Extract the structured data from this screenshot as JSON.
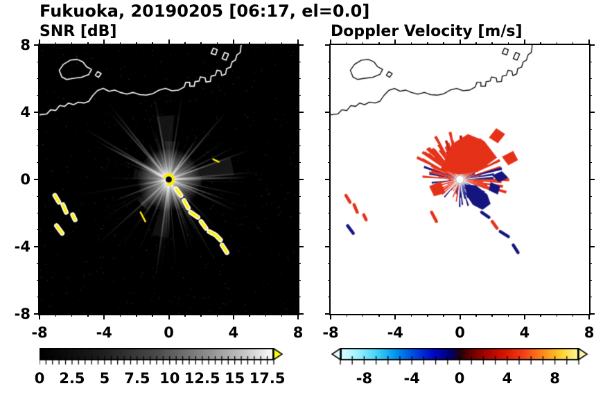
{
  "header": {
    "title": "Fukuoka, 20190205 [06:17, el=0.0]"
  },
  "chart_data": [
    {
      "type": "heatmap",
      "title": "SNR [dB]",
      "xlim": [
        -8,
        8
      ],
      "ylim": [
        -8,
        8
      ],
      "x_tick_values": [
        -8,
        -4,
        0,
        4,
        8
      ],
      "x_tick_labels": [
        "-8",
        "-4",
        "0",
        "4",
        "8"
      ],
      "y_tick_values": [
        8,
        4,
        0,
        -4,
        -8
      ],
      "y_tick_labels": [
        "8",
        "4",
        "0",
        "-4",
        "-8"
      ],
      "background": "#000000",
      "grid": false,
      "colorbar": {
        "orientation": "horizontal",
        "vmin": 0,
        "vmax": 18,
        "tick_values": [
          0,
          2.5,
          5,
          7.5,
          10,
          12.5,
          15,
          17.5
        ],
        "tick_labels": [
          "0",
          "2.5",
          "5",
          "7.5",
          "10",
          "12.5",
          "15",
          "17.5"
        ],
        "colormap": "grayscale black to white",
        "over_arrow_color": "#ffff00"
      },
      "features": [
        "Radar at origin (0,0) with bright white glow and thin radial SNR spokes (5-15 dB) extending up to ~6 units in all directions",
        "Saturated (>17.5 dB) yellow ring immediately around the radar with black dot at exact center",
        "Chain of saturated yellow ground-clutter arcs with white halos running southeast from (0.5,-0.6) to (3.6,-4.3)",
        "Cluster of saturated yellow clutter arcs at lower left between (-7,-1) and (-6.3,-3.3)",
        "Thin yellow clutter dash near (-1.6,-2.2) and small dash near (2.9,1.1)",
        "White coastline of Hakata Bay across the northern half with island outline near (-5.7,6.5) and angular port structures to the northeast",
        "Faint speckle noise over the black background"
      ]
    },
    {
      "type": "heatmap",
      "title": "Doppler Velocity [m/s]",
      "xlim": [
        -8,
        8
      ],
      "ylim": [
        -8,
        8
      ],
      "x_tick_values": [
        -8,
        -4,
        0,
        4,
        8
      ],
      "x_tick_labels": [
        "-8",
        "-4",
        "0",
        "4",
        "8"
      ],
      "y_tick_values": [
        8,
        4,
        0,
        -4,
        -8
      ],
      "y_tick_labels": [],
      "background": "#ffffff",
      "grid": false,
      "colorbar": {
        "orientation": "horizontal",
        "vmin": -10,
        "vmax": 10,
        "tick_values": [
          -8,
          -4,
          0,
          4,
          8
        ],
        "tick_labels": [
          "-8",
          "-4",
          "0",
          "4",
          "8"
        ],
        "colormap": "cyan to blue to navy to black to dark red to red to orange to yellow",
        "under_arrow_color": "#dffdff",
        "over_arrow_color": "#fff9a0"
      },
      "features": [
        "Jagged fan of positive Doppler velocities (red, roughly +3 to +6 m/s) north through east of the radar extending to ~3 units",
        "Solid negative-velocity patch (navy, roughly -6 m/s) southeast of the radar around (1,-1), with smaller navy patches mixed into the eastern red fan",
        "Short red wedges southwest and west of the radar",
        "Scattered red/navy clutter echoes at lower left near (-6.8,-1.2) to (-6.6,-3.2) and along the southeast chain from (1.4,-2) to (3.6,-4.3), matching the SNR clutter arcs",
        "Small white dot with light gray ring marking the radar at the origin",
        "Black coastline of Hakata Bay across the northern half"
      ]
    }
  ]
}
